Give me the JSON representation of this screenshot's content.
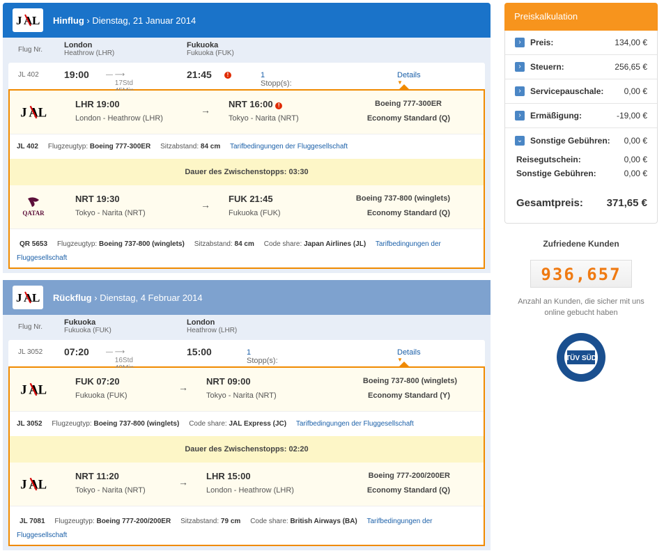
{
  "outbound": {
    "title_bold": "Hinflug",
    "title_date": "Dienstag, 21 Januar 2014",
    "flight_label": "Flug Nr.",
    "from_city": "London",
    "from_airport": "Heathrow (LHR)",
    "to_city": "Fukuoka",
    "to_airport": "Fukuoka (FUK)",
    "summary": {
      "code": "JL 402",
      "dep_time": "19:00",
      "duration": "17Std 45Min",
      "arr_time": "21:45",
      "stops_label": "Stopp(s):",
      "stops_count": "1",
      "details": "Details"
    },
    "segments": [
      {
        "airline": "JAL",
        "from_time": "LHR 19:00",
        "from_city": "London - Heathrow (LHR)",
        "to_time": "NRT 16:00",
        "to_city": "Tokyo - Narita (NRT)",
        "aircraft": "Boeing 777-300ER",
        "class": "Economy Standard (Q)",
        "info_code": "JL 402",
        "info_type_label": "Flugzeugtyp:",
        "info_type": "Boeing 777-300ER",
        "info_pitch_label": "Sitzabstand:",
        "info_pitch": "84 cm",
        "info_link": "Tarifbedingungen der Fluggesellschaft"
      },
      {
        "airline": "QATAR",
        "from_time": "NRT 19:30",
        "from_city": "Tokyo - Narita (NRT)",
        "to_time": "FUK 21:45",
        "to_city": "Fukuoka (FUK)",
        "aircraft": "Boeing 737-800 (winglets)",
        "class": "Economy Standard (Q)",
        "info_code": "QR 5653",
        "info_type_label": "Flugzeugtyp:",
        "info_type": "Boeing 737-800 (winglets)",
        "info_pitch_label": "Sitzabstand:",
        "info_pitch": "84 cm",
        "info_share_label": "Code share:",
        "info_share": "Japan Airlines (JL)",
        "info_link_a": "Tarifbedingungen der",
        "info_link_b": "Fluggesellschaft"
      }
    ],
    "stopover": "Dauer des Zwischenstopps: 03:30"
  },
  "return": {
    "title_bold": "Rückflug",
    "title_date": "Dienstag, 4 Februar 2014",
    "flight_label": "Flug Nr.",
    "from_city": "Fukuoka",
    "from_airport": "Fukuoka (FUK)",
    "to_city": "London",
    "to_airport": "Heathrow (LHR)",
    "summary": {
      "code": "JL 3052",
      "dep_time": "07:20",
      "duration": "16Std 40Min",
      "arr_time": "15:00",
      "stops_label": "Stopp(s):",
      "stops_count": "1",
      "details": "Details"
    },
    "segments": [
      {
        "airline": "JAL",
        "from_time": "FUK 07:20",
        "from_city": "Fukuoka (FUK)",
        "to_time": "NRT 09:00",
        "to_city": "Tokyo - Narita (NRT)",
        "aircraft": "Boeing 737-800 (winglets)",
        "class": "Economy Standard (Y)",
        "info_code": "JL 3052",
        "info_type_label": "Flugzeugtyp:",
        "info_type": "Boeing 737-800 (winglets)",
        "info_share_label": "Code share:",
        "info_share": "JAL Express (JC)",
        "info_link": "Tarifbedingungen der Fluggesellschaft"
      },
      {
        "airline": "JAL",
        "from_time": "NRT 11:20",
        "from_city": "Tokyo - Narita (NRT)",
        "to_time": "LHR 15:00",
        "to_city": "London - Heathrow (LHR)",
        "aircraft": "Boeing 777-200/200ER",
        "class": "Economy Standard (Q)",
        "info_code": "JL 7081",
        "info_type_label": "Flugzeugtyp:",
        "info_type": "Boeing 777-200/200ER",
        "info_pitch_label": "Sitzabstand:",
        "info_pitch": "79 cm",
        "info_share_label": "Code share:",
        "info_share": "British Airways (BA)",
        "info_link_a": "Tarifbedingungen der",
        "info_link_b": "Fluggesellschaft"
      }
    ],
    "stopover": "Dauer des Zwischenstopps: 02:20"
  },
  "price": {
    "title": "Preiskalkulation",
    "rows": [
      {
        "label": "Preis:",
        "value": "134,00 €"
      },
      {
        "label": "Steuern:",
        "value": "256,65 €"
      },
      {
        "label": "Servicepauschale:",
        "value": "0,00 €"
      },
      {
        "label": "Ermäßigung:",
        "value": "-19,00 €"
      },
      {
        "label": "Sonstige Gebühren:",
        "value": "0,00 €"
      }
    ],
    "sub": [
      {
        "label": "Reisegutschein:",
        "value": "0,00 €"
      },
      {
        "label": "Sonstige Gebühren:",
        "value": "0,00 €"
      }
    ],
    "total_label": "Gesamtpreis:",
    "total_value": "371,65 €"
  },
  "customers": {
    "title": "Zufriedene Kunden",
    "count": "936,657",
    "note": "Anzahl an Kunden, die sicher mit uns online gebucht haben",
    "badge_text": "TÜV SÜD"
  },
  "colors": {
    "outbound_header": "#1a73c9",
    "return_header": "#7ea2cf",
    "accent_orange": "#f08a00",
    "price_header": "#f7941d",
    "link": "#1a5fa8"
  }
}
